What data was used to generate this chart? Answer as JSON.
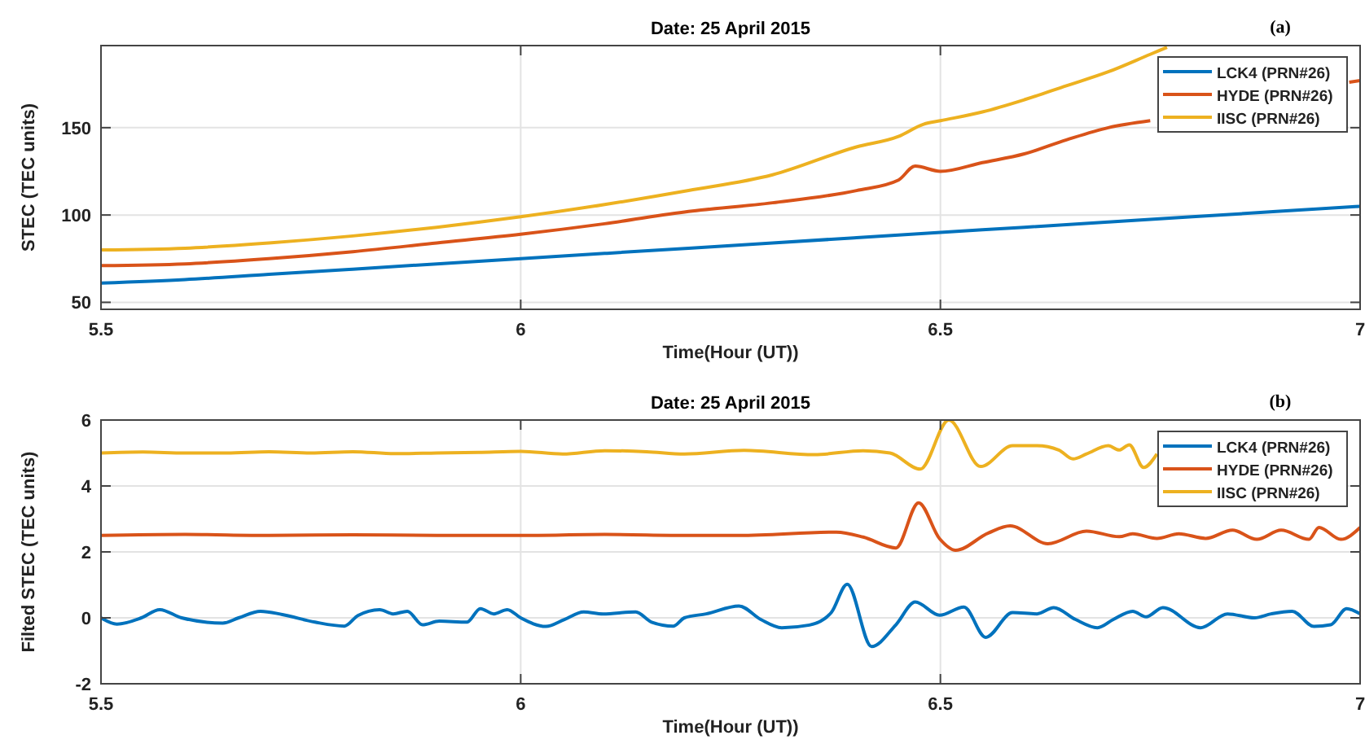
{
  "chart_data": [
    {
      "type": "line",
      "title": "Date: 25 April 2015",
      "xlabel": "Time(Hour (UT))",
      "ylabel": "STEC (TEC units)",
      "annotations": [
        "(a)"
      ],
      "xlim": [
        5.5,
        7
      ],
      "xticks": [
        5.5,
        6,
        6.5,
        7
      ],
      "ylim": [
        46,
        197
      ],
      "yticks": [
        50,
        100,
        150
      ],
      "grid": true,
      "legend": "top right",
      "line_style": "solid",
      "series": [
        {
          "name": "LCK4 (PRN#26)",
          "color": "#0072bd",
          "x": [
            5.5,
            5.6,
            5.7,
            5.8,
            5.9,
            6.0,
            6.1,
            6.2,
            6.3,
            6.4,
            6.5,
            6.6,
            6.7,
            6.8,
            6.9,
            7.0
          ],
          "values": [
            61,
            63,
            66,
            69,
            72,
            75,
            78,
            81,
            84,
            87,
            90,
            93,
            96,
            99,
            102,
            105
          ]
        },
        {
          "name": "HYDE (PRN#26)",
          "color": "#d95319",
          "x": [
            5.5,
            5.6,
            5.7,
            5.8,
            5.9,
            6.0,
            6.1,
            6.2,
            6.3,
            6.4,
            6.45,
            6.47,
            6.5,
            6.55,
            6.6,
            6.65,
            6.7,
            6.75,
            6.85,
            6.987,
            7.0
          ],
          "values": [
            71,
            72,
            75,
            79,
            84,
            89,
            95,
            102,
            107,
            114,
            120,
            128,
            125,
            130,
            135,
            143,
            150,
            154,
            null,
            176,
            177
          ]
        },
        {
          "name": "IISC (PRN#26)",
          "color": "#edb120",
          "x": [
            5.5,
            5.6,
            5.7,
            5.8,
            5.9,
            6.0,
            6.1,
            6.2,
            6.3,
            6.4,
            6.45,
            6.48,
            6.5,
            6.55,
            6.6,
            6.65,
            6.7,
            6.75,
            6.77
          ],
          "values": [
            80,
            81,
            84,
            88,
            93,
            99,
            106,
            114,
            123,
            139,
            145,
            152,
            154,
            159,
            166,
            174,
            182,
            192,
            196
          ]
        }
      ]
    },
    {
      "type": "line",
      "title": "Date: 25 April 2015",
      "xlabel": "Time(Hour (UT))",
      "ylabel": "Filted STEC (TEC units)",
      "annotations": [
        "(b)"
      ],
      "xlim": [
        5.5,
        7
      ],
      "xticks": [
        5.5,
        6,
        6.5,
        7
      ],
      "ylim": [
        -2,
        6
      ],
      "yticks": [
        -2,
        0,
        2,
        4,
        6
      ],
      "grid": true,
      "legend": "top right",
      "line_style": "solid",
      "series": [
        {
          "name": "LCK4 (PRN#26)",
          "color": "#0072bd",
          "x": [
            5.5,
            5.519,
            5.548,
            5.57,
            5.596,
            5.645,
            5.664,
            5.69,
            5.716,
            5.755,
            5.79,
            5.806,
            5.832,
            5.848,
            5.865,
            5.883,
            5.903,
            5.936,
            5.952,
            5.968,
            5.984,
            6.0,
            6.03,
            6.052,
            6.075,
            6.098,
            6.137,
            6.156,
            6.182,
            6.195,
            6.221,
            6.26,
            6.286,
            6.311,
            6.344,
            6.37,
            6.389,
            6.418,
            6.447,
            6.47,
            6.499,
            6.528,
            6.554,
            6.586,
            6.615,
            6.635,
            6.661,
            6.687,
            6.706,
            6.729,
            6.745,
            6.765,
            6.81,
            6.842,
            6.874,
            6.894,
            6.919,
            6.945,
            6.965,
            6.984,
            7.0
          ],
          "values": [
            0,
            -0.19,
            0,
            0.25,
            0,
            -0.16,
            0,
            0.2,
            0.1,
            -0.13,
            -0.25,
            0.07,
            0.25,
            0.12,
            0.2,
            -0.21,
            -0.1,
            -0.13,
            0.28,
            0.12,
            0.25,
            0,
            -0.26,
            -0.05,
            0.18,
            0.12,
            0.18,
            -0.13,
            -0.25,
            0,
            0.12,
            0.36,
            -0.05,
            -0.3,
            -0.22,
            0.16,
            1.02,
            -0.87,
            -0.21,
            0.48,
            0.08,
            0.33,
            -0.59,
            0.16,
            0.12,
            0.31,
            -0.05,
            -0.3,
            -0.05,
            0.2,
            0.03,
            0.31,
            -0.3,
            0.12,
            0,
            0.12,
            0.2,
            -0.26,
            -0.21,
            0.28,
            0.12
          ]
        },
        {
          "name": "HYDE (PRN#26)",
          "color": "#d95319",
          "x": [
            5.5,
            5.6,
            5.7,
            5.8,
            5.9,
            6.0,
            6.1,
            6.2,
            6.26,
            6.376,
            6.408,
            6.447,
            6.474,
            6.499,
            6.518,
            6.557,
            6.583,
            6.628,
            6.674,
            6.713,
            6.729,
            6.758,
            6.784,
            6.816,
            6.848,
            6.877,
            6.906,
            6.939,
            6.951,
            6.977,
            7.0
          ],
          "values": [
            2.5,
            2.53,
            2.5,
            2.52,
            2.5,
            2.5,
            2.53,
            2.5,
            2.5,
            2.6,
            2.45,
            2.12,
            3.49,
            2.4,
            2.05,
            2.57,
            2.79,
            2.25,
            2.63,
            2.46,
            2.55,
            2.41,
            2.55,
            2.41,
            2.66,
            2.38,
            2.66,
            2.38,
            2.74,
            2.38,
            2.74
          ]
        },
        {
          "name": "IISC (PRN#26)",
          "color": "#edb120",
          "x": [
            5.5,
            5.55,
            5.6,
            5.65,
            5.7,
            5.75,
            5.8,
            5.85,
            5.9,
            5.95,
            6.0,
            6.05,
            6.1,
            6.15,
            6.195,
            6.266,
            6.35,
            6.408,
            6.44,
            6.476,
            6.51,
            6.548,
            6.586,
            6.615,
            6.641,
            6.658,
            6.674,
            6.7,
            6.713,
            6.725,
            6.742,
            6.758
          ],
          "values": [
            5.0,
            5.03,
            5.0,
            5.0,
            5.04,
            5.0,
            5.04,
            4.98,
            5.0,
            5.02,
            5.05,
            4.97,
            5.07,
            5.04,
            4.97,
            5.08,
            4.95,
            5.07,
            5.0,
            4.51,
            6.0,
            4.59,
            5.22,
            5.22,
            5.09,
            4.82,
            4.97,
            5.22,
            5.09,
            5.25,
            4.56,
            4.97
          ]
        }
      ]
    }
  ]
}
